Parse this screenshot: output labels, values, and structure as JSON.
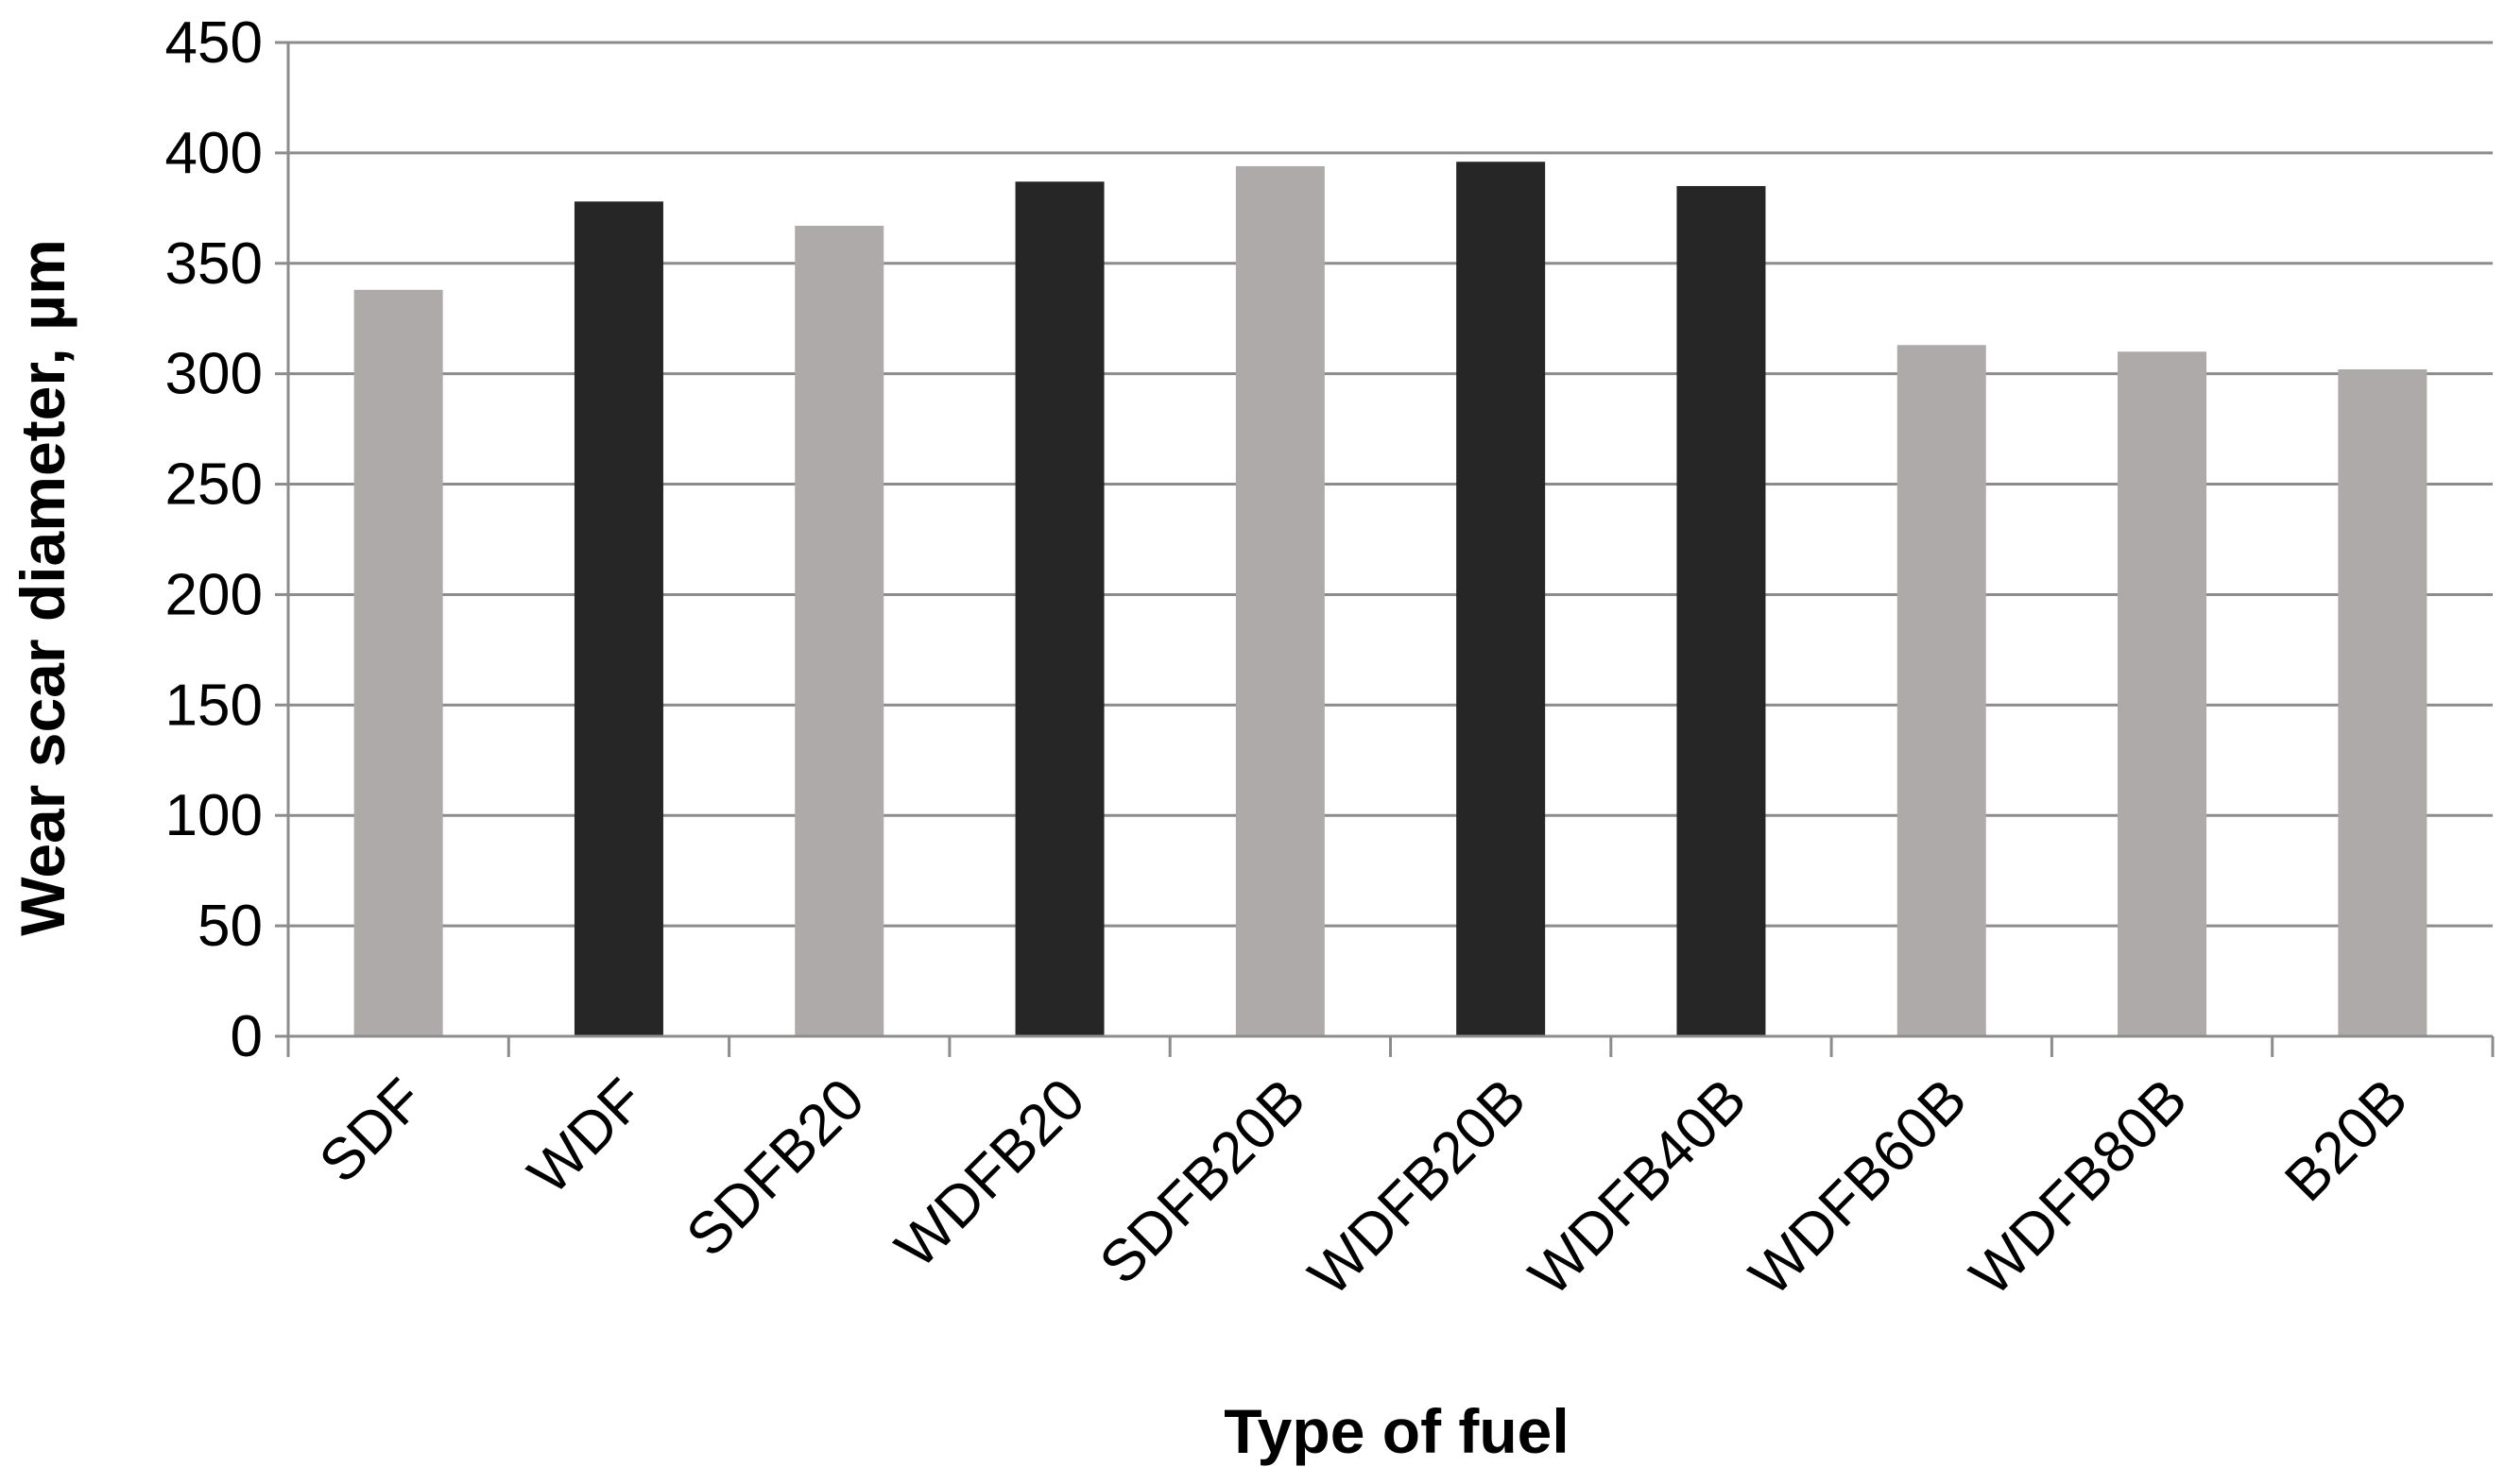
{
  "chart_data": {
    "type": "bar",
    "title": "",
    "xlabel": "Type of fuel",
    "ylabel": "Wear scar diameter, µm",
    "categories": [
      "SDF",
      "WDF",
      "SDFB20",
      "WDFB20",
      "SDFB20B",
      "WDFB20B",
      "WDFB40B",
      "WDFB60B",
      "WDFB80B",
      "B20B"
    ],
    "values": [
      338,
      378,
      367,
      387,
      394,
      396,
      385,
      313,
      310,
      302
    ],
    "bar_colors": [
      "#aeaaaa",
      "#262626",
      "#aeaaaa",
      "#262626",
      "#aeaaaa",
      "#262626",
      "#262626",
      "#aeaaaa",
      "#aeaaaa",
      "#aeaaaa"
    ],
    "ylim": [
      0,
      450
    ],
    "yticks": [
      0,
      50,
      100,
      150,
      200,
      250,
      300,
      350,
      400,
      450
    ],
    "grid": true,
    "legend": "none"
  }
}
